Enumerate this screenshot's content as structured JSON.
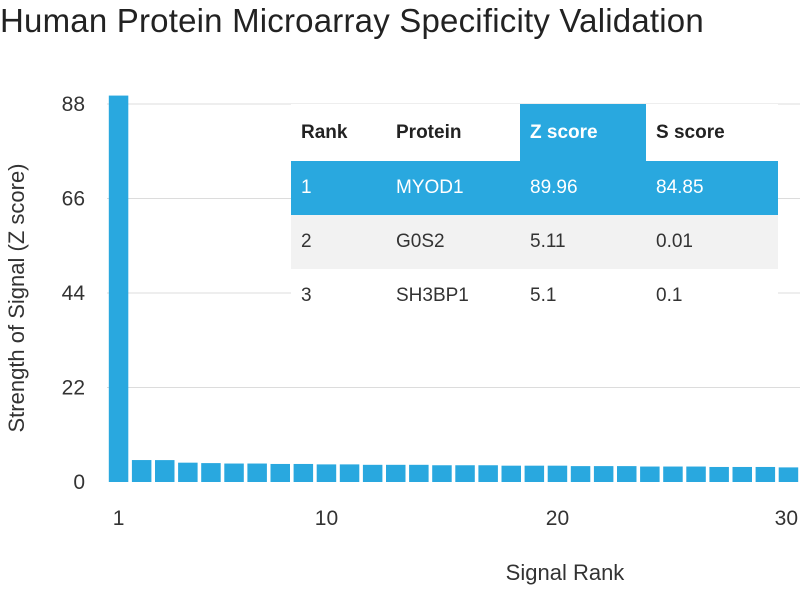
{
  "chart_data": {
    "type": "bar",
    "title": "Human Protein Microarray Specificity Validation",
    "xlabel": "Signal Rank",
    "ylabel": "Strength of Signal (Z score)",
    "ylim": [
      0,
      88
    ],
    "yticks": [
      0,
      22,
      44,
      66,
      88
    ],
    "xticks": [
      1,
      10,
      20,
      30
    ],
    "ranks": [
      1,
      2,
      3,
      4,
      5,
      6,
      7,
      8,
      9,
      10,
      11,
      12,
      13,
      14,
      15,
      16,
      17,
      18,
      19,
      20,
      21,
      22,
      23,
      24,
      25,
      26,
      27,
      28,
      29,
      30
    ],
    "values": [
      89.96,
      5.11,
      5.1,
      4.5,
      4.4,
      4.3,
      4.3,
      4.2,
      4.2,
      4.1,
      4.1,
      4.0,
      4.0,
      4.0,
      3.9,
      3.9,
      3.9,
      3.8,
      3.8,
      3.8,
      3.7,
      3.7,
      3.7,
      3.6,
      3.6,
      3.6,
      3.5,
      3.5,
      3.5,
      3.4
    ],
    "bar_color": "#29a8df",
    "grid": true
  },
  "table": {
    "headers": {
      "rank": "Rank",
      "protein": "Protein",
      "z": "Z score",
      "s": "S score"
    },
    "rows": [
      {
        "rank": "1",
        "protein": "MYOD1",
        "z": "89.96",
        "s": "84.85"
      },
      {
        "rank": "2",
        "protein": "G0S2",
        "z": "5.11",
        "s": "0.01"
      },
      {
        "rank": "3",
        "protein": "SH3BP1",
        "z": "5.1",
        "s": "0.1"
      }
    ]
  },
  "colors": {
    "accent": "#29a8df",
    "grid": "#dcdcdc",
    "row_alt": "#f2f2f2"
  }
}
